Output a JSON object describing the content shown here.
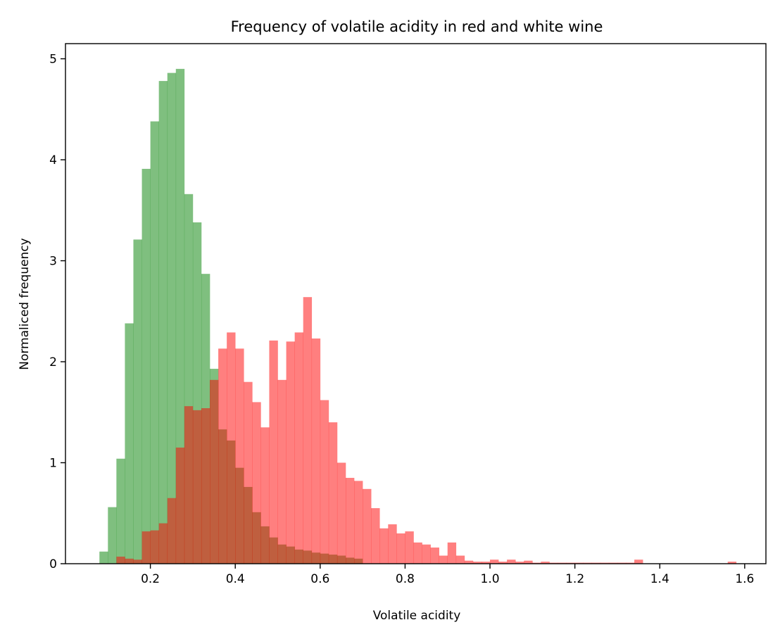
{
  "chart_data": {
    "type": "bar",
    "title": "Frequency of volatile acidity in red and white wine",
    "xlabel": "Volatile acidity",
    "ylabel": "Normaliced frequency",
    "xlim": [
      0.0,
      1.65
    ],
    "ylim": [
      0,
      5.15
    ],
    "xticks": [
      "0.2",
      "0.4",
      "0.6",
      "0.8",
      "1.0",
      "1.2",
      "1.4",
      "1.6"
    ],
    "yticks": [
      "0",
      "1",
      "2",
      "3",
      "4",
      "5"
    ],
    "grid": false,
    "series": [
      {
        "color": "#008000",
        "opacity": 0.5,
        "bin_width": 0.02,
        "bins_start": [
          0.08,
          0.1,
          0.12,
          0.14,
          0.16,
          0.18,
          0.2,
          0.22,
          0.24,
          0.26,
          0.28,
          0.3,
          0.32,
          0.34,
          0.36,
          0.38,
          0.4,
          0.42,
          0.44,
          0.46,
          0.48,
          0.5,
          0.52,
          0.54,
          0.56,
          0.58,
          0.6,
          0.62,
          0.64,
          0.66,
          0.68
        ],
        "values": [
          0.12,
          0.56,
          1.04,
          2.38,
          3.21,
          3.91,
          4.38,
          4.78,
          4.86,
          4.9,
          3.66,
          3.38,
          2.87,
          1.93,
          1.33,
          1.22,
          0.95,
          0.76,
          0.51,
          0.37,
          0.26,
          0.19,
          0.17,
          0.14,
          0.13,
          0.11,
          0.1,
          0.09,
          0.08,
          0.06,
          0.05
        ]
      },
      {
        "color": "#ff0000",
        "opacity": 0.5,
        "bin_width": 0.02,
        "bins_start": [
          0.12,
          0.14,
          0.16,
          0.18,
          0.2,
          0.22,
          0.24,
          0.26,
          0.28,
          0.3,
          0.32,
          0.34,
          0.36,
          0.38,
          0.4,
          0.42,
          0.44,
          0.46,
          0.48,
          0.5,
          0.52,
          0.54,
          0.56,
          0.58,
          0.6,
          0.62,
          0.64,
          0.66,
          0.68,
          0.7,
          0.72,
          0.74,
          0.76,
          0.78,
          0.8,
          0.82,
          0.84,
          0.86,
          0.88,
          0.9,
          0.92,
          0.94,
          0.96,
          0.98,
          1.0,
          1.02,
          1.04,
          1.06,
          1.08,
          1.1,
          1.12,
          1.14,
          1.16,
          1.18,
          1.2,
          1.22,
          1.24,
          1.26,
          1.28,
          1.3,
          1.32,
          1.34,
          1.56
        ],
        "values": [
          0.07,
          0.05,
          0.04,
          0.32,
          0.33,
          0.4,
          0.65,
          1.15,
          1.56,
          1.52,
          1.54,
          1.82,
          2.13,
          2.29,
          2.13,
          1.8,
          1.6,
          1.35,
          2.21,
          1.82,
          2.2,
          2.29,
          2.64,
          2.23,
          1.62,
          1.4,
          1.0,
          0.85,
          0.82,
          0.74,
          0.55,
          0.35,
          0.39,
          0.3,
          0.32,
          0.21,
          0.19,
          0.16,
          0.08,
          0.21,
          0.08,
          0.03,
          0.02,
          0.02,
          0.04,
          0.02,
          0.04,
          0.02,
          0.03,
          0.01,
          0.02,
          0.01,
          0.01,
          0.01,
          0.01,
          0.01,
          0.01,
          0.01,
          0.01,
          0.01,
          0.01,
          0.04,
          0.02
        ]
      }
    ]
  }
}
